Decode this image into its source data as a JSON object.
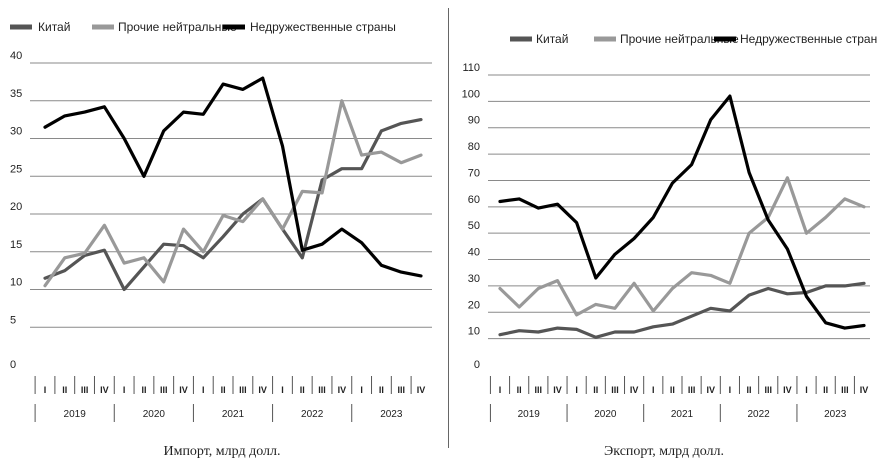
{
  "chart_data": [
    {
      "type": "line",
      "title": "",
      "caption": "Импорт, млрд долл.",
      "xlabel": "",
      "ylabel": "",
      "ylim": [
        0,
        40
      ],
      "yticks": [
        0,
        5,
        10,
        15,
        20,
        25,
        30,
        35,
        40
      ],
      "grid": "horizontal",
      "legend_position": "top",
      "quarters": [
        "I",
        "II",
        "III",
        "IV",
        "I",
        "II",
        "III",
        "IV",
        "I",
        "II",
        "III",
        "IV",
        "I",
        "II",
        "III",
        "IV",
        "I",
        "II",
        "III",
        "IV"
      ],
      "years": [
        "2019",
        "2020",
        "2021",
        "2022",
        "2023"
      ],
      "series": [
        {
          "name": "Китай",
          "color": "#555555",
          "values": [
            11.5,
            12.5,
            14.5,
            15.2,
            10,
            13,
            16,
            15.8,
            14.2,
            17,
            20,
            22,
            18,
            14.2,
            24.5,
            26,
            26,
            31,
            32,
            32.5
          ]
        },
        {
          "name": "Прочие нейтральные",
          "color": "#999999",
          "values": [
            10.5,
            14.2,
            14.8,
            18.5,
            13.5,
            14.2,
            11,
            18,
            15,
            19.8,
            19,
            22,
            18,
            23,
            22.8,
            35,
            27.8,
            28.2,
            26.8,
            27.8
          ]
        },
        {
          "name": "Недружественные страны",
          "color": "#000000",
          "values": [
            31.5,
            33,
            33.5,
            34.2,
            30,
            25,
            31,
            33.5,
            33.2,
            37.2,
            36.5,
            38,
            29,
            15.2,
            16,
            18,
            16.2,
            13.2,
            12.3,
            11.8
          ]
        }
      ]
    },
    {
      "type": "line",
      "title": "",
      "caption": "Экспорт, млрд долл.",
      "xlabel": "",
      "ylabel": "",
      "ylim": [
        0,
        110
      ],
      "yticks": [
        0,
        10,
        20,
        30,
        40,
        50,
        60,
        70,
        80,
        90,
        100,
        110
      ],
      "grid": "horizontal",
      "legend_position": "top",
      "quarters": [
        "I",
        "II",
        "III",
        "IV",
        "I",
        "II",
        "III",
        "IV",
        "I",
        "II",
        "III",
        "IV",
        "I",
        "II",
        "III",
        "IV",
        "I",
        "II",
        "III",
        "IV"
      ],
      "years": [
        "2019",
        "2020",
        "2021",
        "2022",
        "2023"
      ],
      "series": [
        {
          "name": "Китай",
          "color": "#555555",
          "values": [
            11.5,
            13,
            12.5,
            14,
            13.5,
            10.5,
            12.5,
            12.5,
            14.5,
            15.5,
            18.5,
            21.5,
            20.5,
            26.5,
            29,
            27,
            27.5,
            30,
            30,
            31
          ]
        },
        {
          "name": "Прочие нейтральные",
          "color": "#999999",
          "values": [
            29,
            22,
            29,
            32,
            19,
            23,
            21.5,
            31,
            20.5,
            29,
            35,
            34,
            31,
            50,
            56,
            71,
            50,
            56,
            63,
            60
          ]
        },
        {
          "name": "Недружественные страны",
          "color": "#000000",
          "values": [
            62,
            63,
            59.5,
            61,
            54,
            33,
            42,
            48,
            56,
            69,
            76,
            93,
            102,
            73,
            55,
            44,
            26,
            16,
            14,
            15
          ]
        }
      ]
    }
  ]
}
